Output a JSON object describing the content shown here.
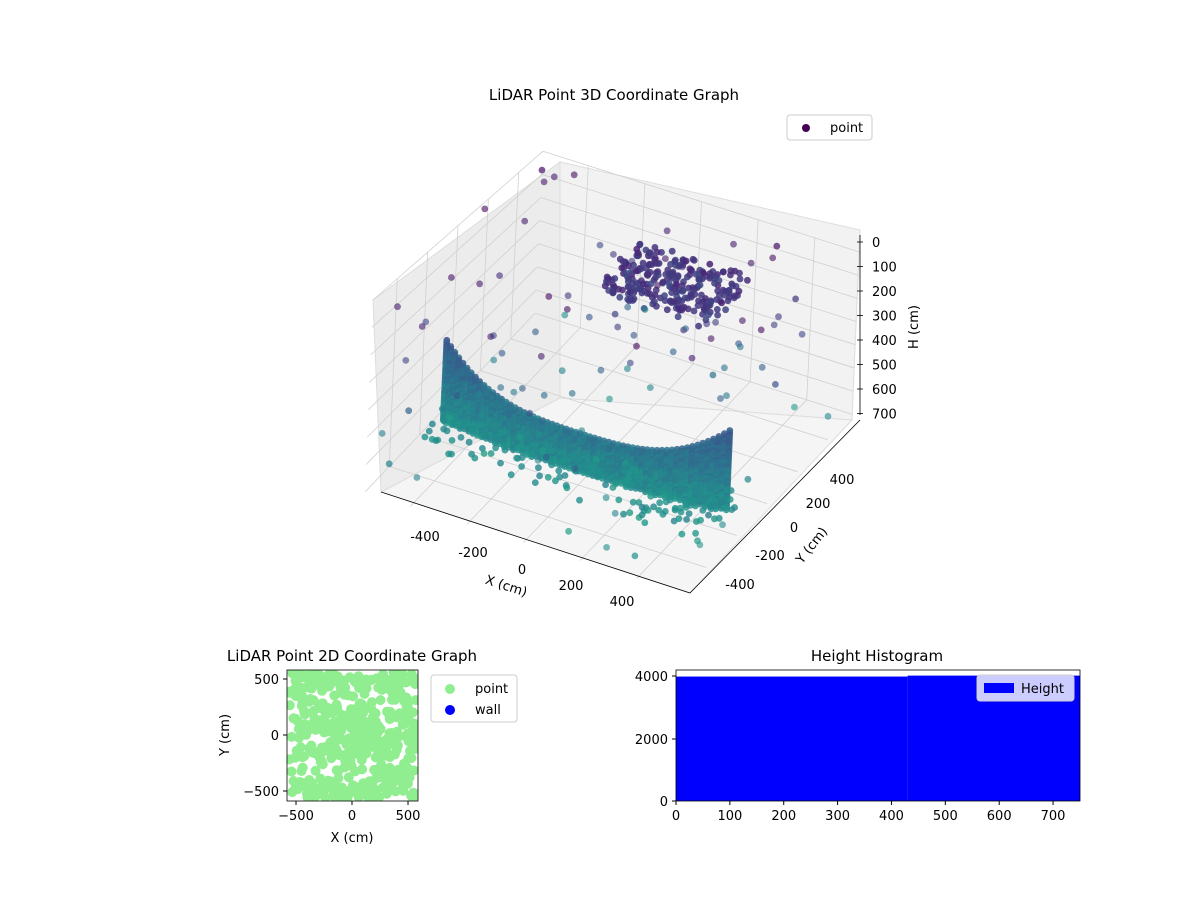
{
  "chart_data": [
    {
      "type": "scatter",
      "projection": "3d",
      "title": "LiDAR Point 3D Coordinate Graph",
      "xlabel": "X (cm)",
      "ylabel": "Y (cm)",
      "zlabel": "H (cm)",
      "xlim": [
        -560,
        560
      ],
      "ylim": [
        -560,
        560
      ],
      "zlim": [
        700,
        0
      ],
      "x_ticks": [
        "-400",
        "-200",
        "0",
        "200",
        "400"
      ],
      "y_ticks": [
        "-400",
        "-200",
        "0",
        "200",
        "400"
      ],
      "z_ticks": [
        "0",
        "100",
        "200",
        "300",
        "400",
        "500",
        "600",
        "700"
      ],
      "colormap": "viridis",
      "colors": {
        "low": "#440154",
        "mid": "#3b528b",
        "high": "#5ec962"
      },
      "grid": true,
      "legend": {
        "placement": "top-right",
        "entries": [
          {
            "name": "point",
            "color": "#440154"
          }
        ]
      },
      "series": [
        {
          "name": "point",
          "description_note": "",
          "wall_arc": {
            "x_range": [
              -500,
              500
            ],
            "y": -200,
            "h_top": 400,
            "h_bottom": 650
          },
          "ceiling_cluster": {
            "x_range": [
              -150,
              250
            ],
            "y_range": [
              150,
              450
            ],
            "h": 150
          },
          "sample_points": [
            {
              "x": -520,
              "y": 480,
              "h": 20
            },
            {
              "x": 300,
              "y": 500,
              "h": 40
            },
            {
              "x": 450,
              "y": 350,
              "h": 120
            },
            {
              "x": 520,
              "y": 100,
              "h": 300
            },
            {
              "x": 540,
              "y": -100,
              "h": 550
            },
            {
              "x": 500,
              "y": -350,
              "h": 650
            },
            {
              "x": 350,
              "y": -480,
              "h": 680
            },
            {
              "x": -450,
              "y": -500,
              "h": 400
            },
            {
              "x": -500,
              "y": -520,
              "h": 600
            },
            {
              "x": 100,
              "y": -450,
              "h": 690
            },
            {
              "x": 200,
              "y": 300,
              "h": 500
            },
            {
              "x": -100,
              "y": 200,
              "h": 300
            }
          ]
        }
      ]
    },
    {
      "type": "scatter",
      "title": "LiDAR Point 2D Coordinate Graph",
      "xlabel": "X (cm)",
      "ylabel": "Y (cm)",
      "xlim": [
        -580,
        580
      ],
      "ylim": [
        -580,
        580
      ],
      "x_ticks": [
        "−500",
        "0",
        "500"
      ],
      "y_ticks": [
        "−500",
        "0",
        "500"
      ],
      "legend": {
        "placement": "outside-right",
        "entries": [
          {
            "name": "point",
            "color": "#90ee90"
          },
          {
            "name": "wall",
            "color": "#0000ff"
          }
        ]
      },
      "series": [
        {
          "name": "point",
          "color": "#90ee90",
          "region": {
            "x_range": [
              -560,
              560
            ],
            "y_range": [
              -560,
              560
            ]
          }
        },
        {
          "name": "wall",
          "color": "#0000ff",
          "points": []
        }
      ]
    },
    {
      "type": "bar",
      "title": "Height Histogram",
      "xlim": [
        0,
        750
      ],
      "ylim": [
        0,
        4200
      ],
      "x_ticks": [
        "0",
        "100",
        "200",
        "300",
        "400",
        "500",
        "600",
        "700"
      ],
      "y_ticks": [
        "0",
        "2000",
        "4000"
      ],
      "legend": {
        "placement": "top-right",
        "entries": [
          {
            "name": "Height",
            "color": "#0000ff"
          }
        ]
      },
      "series": [
        {
          "name": "Height",
          "color": "#0000ff",
          "bins": [
            {
              "start": 0,
              "end": 430,
              "count": 3990
            },
            {
              "start": 430,
              "end": 750,
              "count": 4020
            }
          ]
        }
      ]
    }
  ]
}
